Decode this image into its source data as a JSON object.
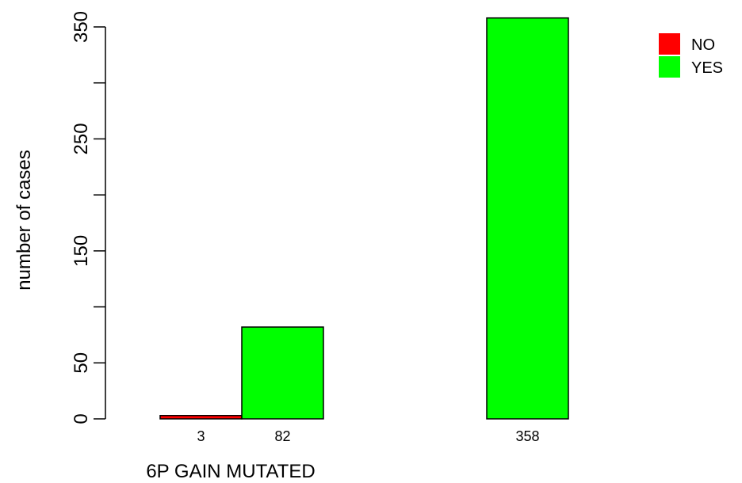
{
  "chart_data": {
    "type": "bar",
    "mode": "grouped",
    "groups": [
      "",
      ""
    ],
    "series": [
      {
        "name": "NO",
        "color": "#ff0000",
        "values": [
          3,
          0
        ]
      },
      {
        "name": "YES",
        "color": "#00ff00",
        "values": [
          82,
          358
        ]
      }
    ],
    "bar_value_labels": [
      [
        "3",
        "82"
      ],
      [
        "",
        "358"
      ]
    ],
    "xlabel": "6P GAIN MUTATED",
    "ylabel": "number of cases",
    "ylim": [
      0,
      350
    ],
    "y_major_ticks": [
      0,
      50,
      150,
      250,
      350
    ],
    "y_minor_ticks": [
      100,
      200,
      300
    ],
    "legend": {
      "position": "top-right",
      "entries": [
        "NO",
        "YES"
      ]
    },
    "grid": false
  }
}
